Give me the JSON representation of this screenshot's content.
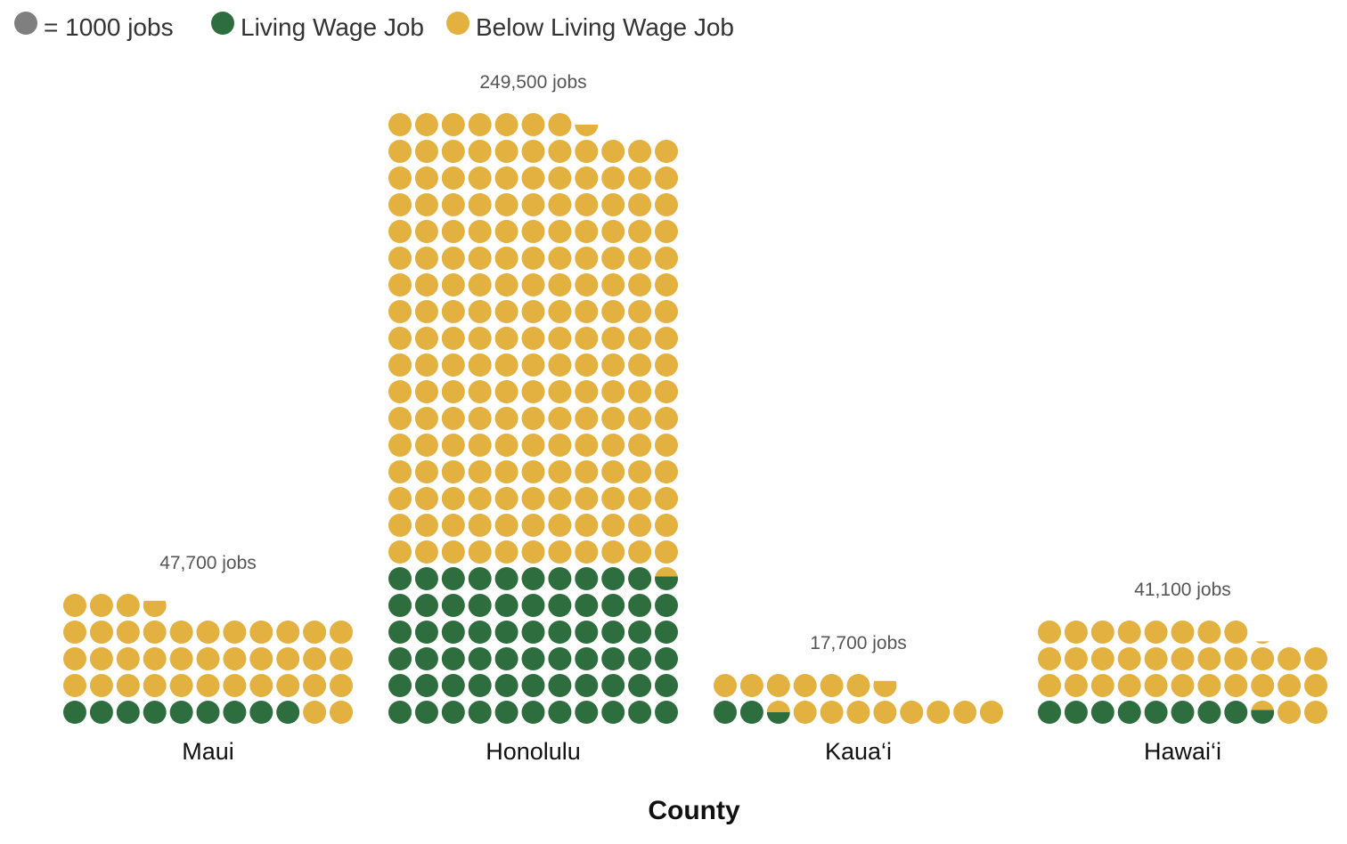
{
  "chart_data": {
    "type": "waffle",
    "xlabel": "County",
    "unit_legend": "= 1000 jobs",
    "jobs_per_dot": 1000,
    "dots_per_row": 11,
    "categories": [
      "Maui",
      "Honolulu",
      "Kaua‘i",
      "Hawai‘i"
    ],
    "total_labels": [
      "47,700 jobs",
      "249,500 jobs",
      "17,700 jobs",
      "41,100 jobs"
    ],
    "series": [
      {
        "name": "Living Wage Job",
        "values": [
          9000,
          65600,
          2500,
          8600
        ]
      },
      {
        "name": "Below Living Wage Job",
        "values": [
          38700,
          183900,
          15200,
          32500
        ]
      }
    ],
    "colors": {
      "unit": "#7f7f7f",
      "living_wage": "#2e6e3e",
      "below_living_wage": "#e2b13f"
    }
  }
}
